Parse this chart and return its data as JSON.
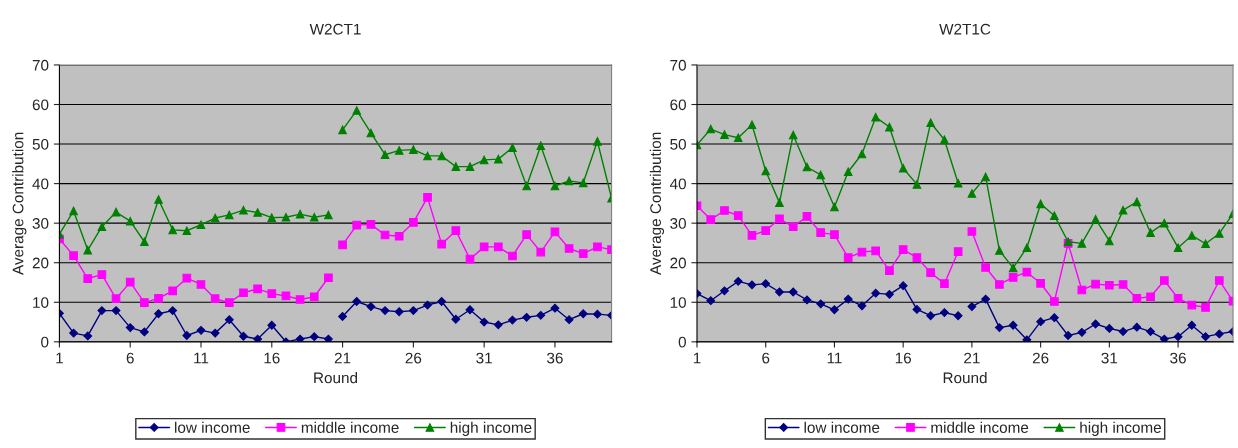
{
  "chart_data": [
    {
      "type": "line",
      "title": "W2CT1",
      "xlabel": "Round",
      "ylabel": "Average Contribution",
      "xlim": [
        1,
        40
      ],
      "xticks": [
        1,
        6,
        11,
        16,
        21,
        26,
        31,
        36
      ],
      "ylim": [
        0,
        70
      ],
      "yticks": [
        0,
        10,
        20,
        30,
        40,
        50,
        60,
        70
      ],
      "grid": "y",
      "legend": "bottom",
      "series": [
        {
          "name": "low income",
          "color": "#000080",
          "marker": "diamond",
          "x": [
            1,
            2,
            3,
            4,
            5,
            6,
            7,
            8,
            9,
            10,
            11,
            12,
            13,
            14,
            15,
            16,
            17,
            18,
            19,
            20
          ],
          "values": [
            7.2,
            2.2,
            1.5,
            7.9,
            7.9,
            3.6,
            2.5,
            7.1,
            7.9,
            1.6,
            2.9,
            2.2,
            5.6,
            1.4,
            0.7,
            4.2,
            0,
            0.7,
            1.3,
            0.7
          ]
        },
        {
          "name": "middle income",
          "color": "#ff00ff",
          "marker": "square",
          "x": [
            1,
            2,
            3,
            4,
            5,
            6,
            7,
            8,
            9,
            10,
            11,
            12,
            13,
            14,
            15,
            16,
            17,
            18,
            19,
            20
          ],
          "values": [
            26,
            21.8,
            16,
            17,
            10.9,
            15.1,
            9.9,
            11,
            12.9,
            16.1,
            14.5,
            10.9,
            9.9,
            12.4,
            13.4,
            12.2,
            11.6,
            10.7,
            11.4,
            16.2
          ]
        },
        {
          "name": "high income",
          "color": "#008000",
          "marker": "triangle",
          "x": [
            1,
            2,
            3,
            4,
            5,
            6,
            7,
            8,
            9,
            10,
            11,
            12,
            13,
            14,
            15,
            16,
            17,
            18,
            19,
            20
          ],
          "values": [
            27.2,
            33.1,
            23.2,
            29.1,
            32.8,
            30.5,
            25.3,
            36,
            28.3,
            28.1,
            29.6,
            31.3,
            32.1,
            33.3,
            32.7,
            31.4,
            31.5,
            32.3,
            31.5,
            32.1
          ]
        },
        {
          "color": "#000080",
          "marker": "diamond",
          "x": [
            21,
            22,
            23,
            24,
            25,
            26,
            27,
            28,
            29,
            30,
            31,
            32,
            33,
            34,
            35,
            36,
            37,
            38,
            39,
            40
          ],
          "values": [
            6.4,
            10.2,
            8.9,
            7.9,
            7.6,
            7.9,
            9.3,
            10.2,
            5.7,
            8.1,
            5.0,
            4.3,
            5.5,
            6.2,
            6.7,
            8.5,
            5.6,
            7.1,
            7.0,
            6.7
          ]
        },
        {
          "color": "#ff00ff",
          "marker": "square",
          "x": [
            21,
            22,
            23,
            24,
            25,
            26,
            27,
            28,
            29,
            30,
            31,
            32,
            33,
            34,
            35,
            36,
            37,
            38,
            39,
            40
          ],
          "values": [
            24.5,
            29.5,
            29.7,
            27,
            26.7,
            30.2,
            36.5,
            24.7,
            28.1,
            20.9,
            24,
            24,
            21.7,
            27.1,
            22.7,
            27.8,
            23.6,
            22.3,
            24,
            23.3
          ]
        },
        {
          "color": "#008000",
          "marker": "triangle",
          "x": [
            21,
            22,
            23,
            24,
            25,
            26,
            27,
            28,
            29,
            30,
            31,
            32,
            33,
            34,
            35,
            36,
            37,
            38,
            39,
            40
          ],
          "values": [
            53.6,
            58.5,
            52.8,
            47.3,
            48.4,
            48.6,
            47,
            47,
            44.3,
            44.3,
            46,
            46.2,
            49.1,
            39.4,
            49.6,
            39.4,
            40.7,
            40.2,
            50.7,
            36.3
          ]
        }
      ]
    },
    {
      "type": "line",
      "title": "W2T1C",
      "xlabel": "Round",
      "ylabel": "Average Contribution",
      "xlim": [
        1,
        40
      ],
      "xticks": [
        1,
        6,
        11,
        16,
        21,
        26,
        31,
        36
      ],
      "ylim": [
        0,
        70
      ],
      "yticks": [
        0,
        10,
        20,
        30,
        40,
        50,
        60,
        70
      ],
      "grid": "y",
      "legend": "bottom",
      "series": [
        {
          "name": "low income",
          "color": "#000080",
          "marker": "diamond",
          "x": [
            1,
            2,
            3,
            4,
            5,
            6,
            7,
            8,
            9,
            10,
            11,
            12,
            13,
            14,
            15,
            16,
            17,
            18,
            19,
            20
          ],
          "values": [
            12.2,
            10.4,
            12.9,
            15.3,
            14.4,
            14.7,
            12.6,
            12.6,
            10.6,
            9.6,
            8.1,
            10.8,
            9.1,
            12.3,
            12.0,
            14.2,
            8.2,
            6.6,
            7.4,
            6.6
          ]
        },
        {
          "name": "middle income",
          "color": "#ff00ff",
          "marker": "square",
          "x": [
            1,
            2,
            3,
            4,
            5,
            6,
            7,
            8,
            9,
            10,
            11,
            12,
            13,
            14,
            15,
            16,
            17,
            18,
            19,
            20
          ],
          "values": [
            34.4,
            30.9,
            33.2,
            31.9,
            26.9,
            28.1,
            31.1,
            29.1,
            31.7,
            27.6,
            27.1,
            21.3,
            22.7,
            23.0,
            18.0,
            23.3,
            21.3,
            17.5,
            14.7,
            22.8
          ]
        },
        {
          "name": "high income",
          "color": "#008000",
          "marker": "triangle",
          "x": [
            1,
            2,
            3,
            4,
            5,
            6,
            7,
            8,
            9,
            10,
            11,
            12,
            13,
            14,
            15,
            16,
            17,
            18,
            19,
            20
          ],
          "values": [
            49.8,
            53.8,
            52.4,
            51.6,
            54.9,
            43.2,
            35.2,
            52.3,
            44.2,
            42.2,
            34.1,
            43.0,
            47.5,
            56.8,
            54.3,
            43.9,
            39.8,
            55.4,
            51.1,
            40.1
          ]
        },
        {
          "color": "#000080",
          "marker": "diamond",
          "x": [
            21,
            22,
            23,
            24,
            25,
            26,
            27,
            28,
            29,
            30,
            31,
            32,
            33,
            34,
            35,
            36,
            37,
            38,
            39,
            40
          ],
          "values": [
            8.9,
            10.8,
            3.6,
            4.2,
            0.5,
            5.1,
            6.1,
            1.6,
            2.4,
            4.5,
            3.4,
            2.6,
            3.7,
            2.6,
            0.7,
            1.3,
            4.2,
            1.3,
            2.0,
            2.6
          ]
        },
        {
          "color": "#ff00ff",
          "marker": "square",
          "x": [
            21,
            22,
            23,
            24,
            25,
            26,
            27,
            28,
            29,
            30,
            31,
            32,
            33,
            34,
            35,
            36,
            37,
            38,
            39,
            40
          ],
          "values": [
            27.9,
            18.8,
            14.5,
            16.3,
            17.6,
            14.8,
            10.2,
            24.9,
            13.1,
            14.6,
            14.3,
            14.5,
            11.0,
            11.4,
            15.5,
            11.0,
            9.3,
            8.7,
            15.5,
            10.3
          ]
        },
        {
          "color": "#008000",
          "marker": "triangle",
          "x": [
            21,
            22,
            23,
            24,
            25,
            26,
            27,
            28,
            29,
            30,
            31,
            32,
            33,
            34,
            35,
            36,
            37,
            38,
            39,
            40
          ],
          "values": [
            37.5,
            41.7,
            23.1,
            18.7,
            23.8,
            34.9,
            31.9,
            25.3,
            24.9,
            31.0,
            25.5,
            33.3,
            35.4,
            27.6,
            30.0,
            23.8,
            26.9,
            24.8,
            27.4,
            32.4
          ]
        }
      ]
    }
  ]
}
